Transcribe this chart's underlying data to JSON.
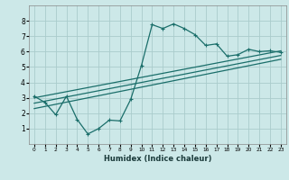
{
  "title": "",
  "xlabel": "Humidex (Indice chaleur)",
  "bg_color": "#cce8e8",
  "grid_color": "#aacccc",
  "line_color": "#1a6e6a",
  "xlim": [
    -0.5,
    23.5
  ],
  "ylim": [
    0,
    9
  ],
  "xticks": [
    0,
    1,
    2,
    3,
    4,
    5,
    6,
    7,
    8,
    9,
    10,
    11,
    12,
    13,
    14,
    15,
    16,
    17,
    18,
    19,
    20,
    21,
    22,
    23
  ],
  "yticks": [
    1,
    2,
    3,
    4,
    5,
    6,
    7,
    8
  ],
  "line1_x": [
    0,
    1,
    2,
    3,
    4,
    5,
    6,
    7,
    8,
    9,
    10,
    11,
    12,
    13,
    14,
    15,
    16,
    17,
    18,
    19,
    20,
    21,
    22,
    23
  ],
  "line1_y": [
    3.1,
    2.7,
    1.9,
    3.1,
    1.6,
    0.65,
    1.0,
    1.55,
    1.5,
    2.9,
    5.1,
    7.75,
    7.5,
    7.8,
    7.5,
    7.1,
    6.4,
    6.5,
    5.7,
    5.8,
    6.15,
    6.0,
    6.05,
    5.95
  ],
  "line2_x": [
    0,
    23
  ],
  "line2_y": [
    3.0,
    6.05
  ],
  "line3_x": [
    0,
    23
  ],
  "line3_y": [
    2.65,
    5.75
  ],
  "line4_x": [
    0,
    23
  ],
  "line4_y": [
    2.3,
    5.5
  ]
}
